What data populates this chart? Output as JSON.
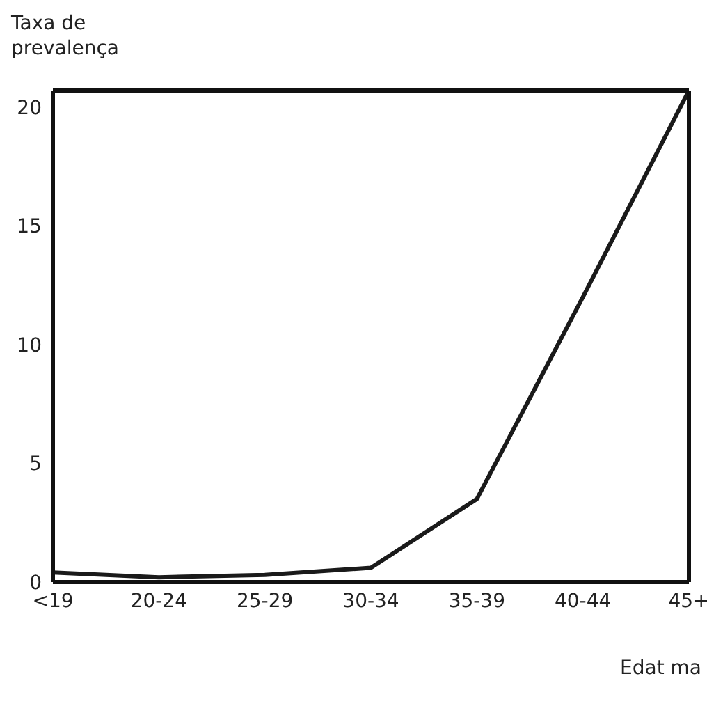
{
  "chart_data": {
    "type": "line",
    "ylabel": "Taxa de prevalença",
    "xlabel": "Edat ma",
    "categories": [
      "<19",
      "20-24",
      "25-29",
      "30-34",
      "35-39",
      "40-44",
      "45+"
    ],
    "values": [
      0.4,
      0.2,
      0.3,
      0.6,
      3.5,
      12,
      20.7
    ],
    "color": "#1a1a1a",
    "ylim": [
      0,
      20.7
    ],
    "yticks": [
      0,
      5,
      10,
      15,
      20
    ],
    "marker": "none",
    "line_style": "solid"
  }
}
